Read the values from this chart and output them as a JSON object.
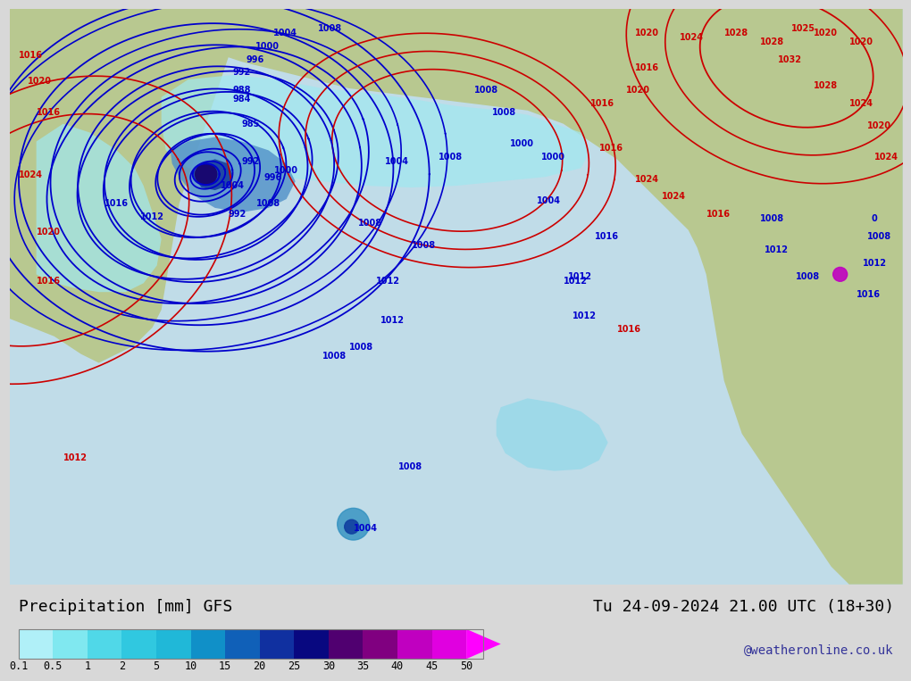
{
  "title_left": "Precipitation [mm] GFS",
  "title_right": "Tu 24-09-2024 21.00 UTC (18+30)",
  "credit": "@weatheronline.co.uk",
  "colorbar_labels": [
    "0.1",
    "0.5",
    "1",
    "2",
    "5",
    "10",
    "15",
    "20",
    "25",
    "30",
    "35",
    "40",
    "45",
    "50"
  ],
  "colorbar_colors": [
    "#b0f0f8",
    "#80e8f0",
    "#50d8e8",
    "#30c8e0",
    "#20b8d8",
    "#1090c8",
    "#1060b8",
    "#1030a0",
    "#080880",
    "#500070",
    "#800080",
    "#c000c0",
    "#e000e0",
    "#ff00ff"
  ],
  "bg_color": "#e8e8e8",
  "map_bg": "#d0d0d0",
  "figsize": [
    10.0,
    7.33
  ]
}
